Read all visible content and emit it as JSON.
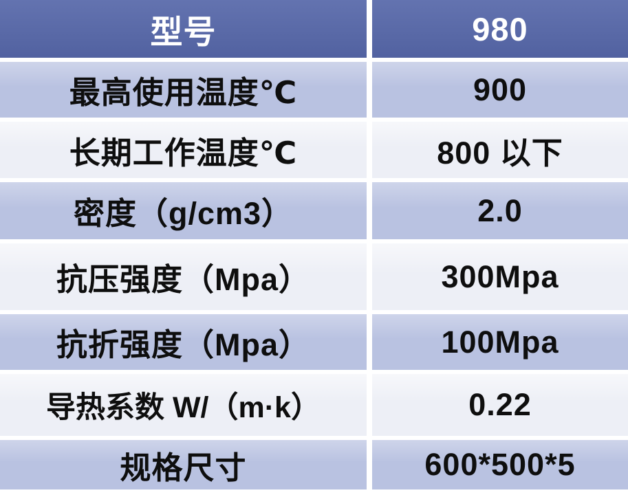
{
  "table": {
    "header": {
      "label": "型号",
      "value": "980"
    },
    "rows": [
      {
        "label": "最高使用温度℃",
        "value": "900"
      },
      {
        "label": "长期工作温度℃",
        "value": "800 以下"
      },
      {
        "label": "密度（g/cm3）",
        "value": "2.0"
      },
      {
        "label": "抗压强度（Mpa）",
        "value": "300Mpa"
      },
      {
        "label": "抗折强度（Mpa）",
        "value": "100Mpa"
      },
      {
        "label": "导热系数 W/（m·k）",
        "value": "0.22"
      },
      {
        "label": "规格尺寸",
        "value": "600*500*5"
      }
    ]
  },
  "colors": {
    "header_bg": "#5667a9",
    "header_text": "#ffffff",
    "row_alt_bg": "#b9c2e1",
    "row_light_bg": "#edeff6",
    "gutter": "#ffffff",
    "body_text": "#0e0e0e"
  },
  "chart_data": {
    "type": "table",
    "columns": [
      "型号",
      "980"
    ],
    "rows": [
      [
        "最高使用温度℃",
        "900"
      ],
      [
        "长期工作温度℃",
        "800 以下"
      ],
      [
        "密度（g/cm3）",
        "2.0"
      ],
      [
        "抗压强度（Mpa）",
        "300Mpa"
      ],
      [
        "抗折强度（Mpa）",
        "100Mpa"
      ],
      [
        "导热系数 W/（m·k）",
        "0.22"
      ],
      [
        "规格尺寸",
        "600*500*5"
      ]
    ]
  }
}
